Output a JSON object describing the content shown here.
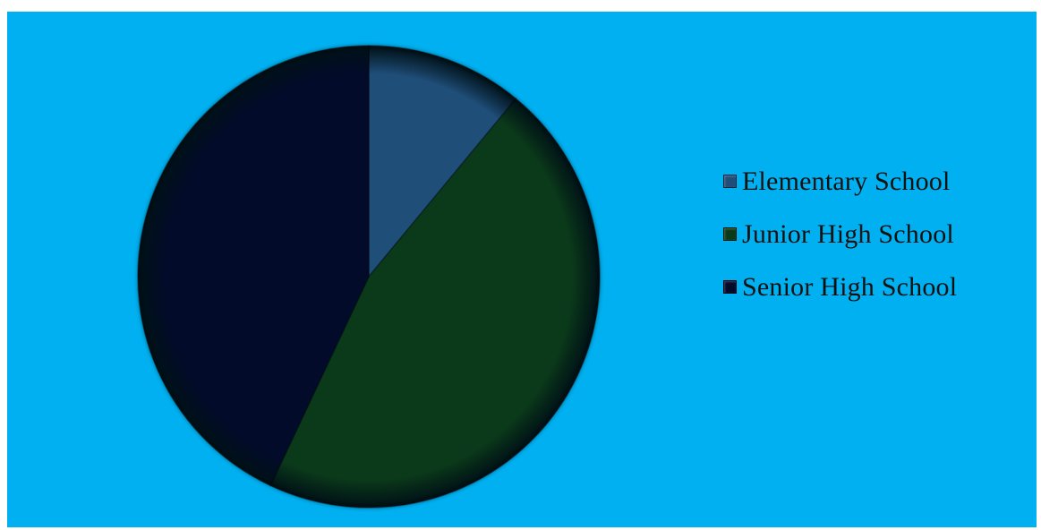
{
  "chart_data": {
    "type": "pie",
    "title": "",
    "categories": [
      "Elementary School",
      "Junior High School",
      "Senior High School"
    ],
    "values": [
      11,
      46,
      43
    ],
    "legend_position": "right",
    "background_color": "#00B0F0",
    "colors": [
      "#1F4E79",
      "#0B3A1A",
      "#020B2A"
    ]
  }
}
